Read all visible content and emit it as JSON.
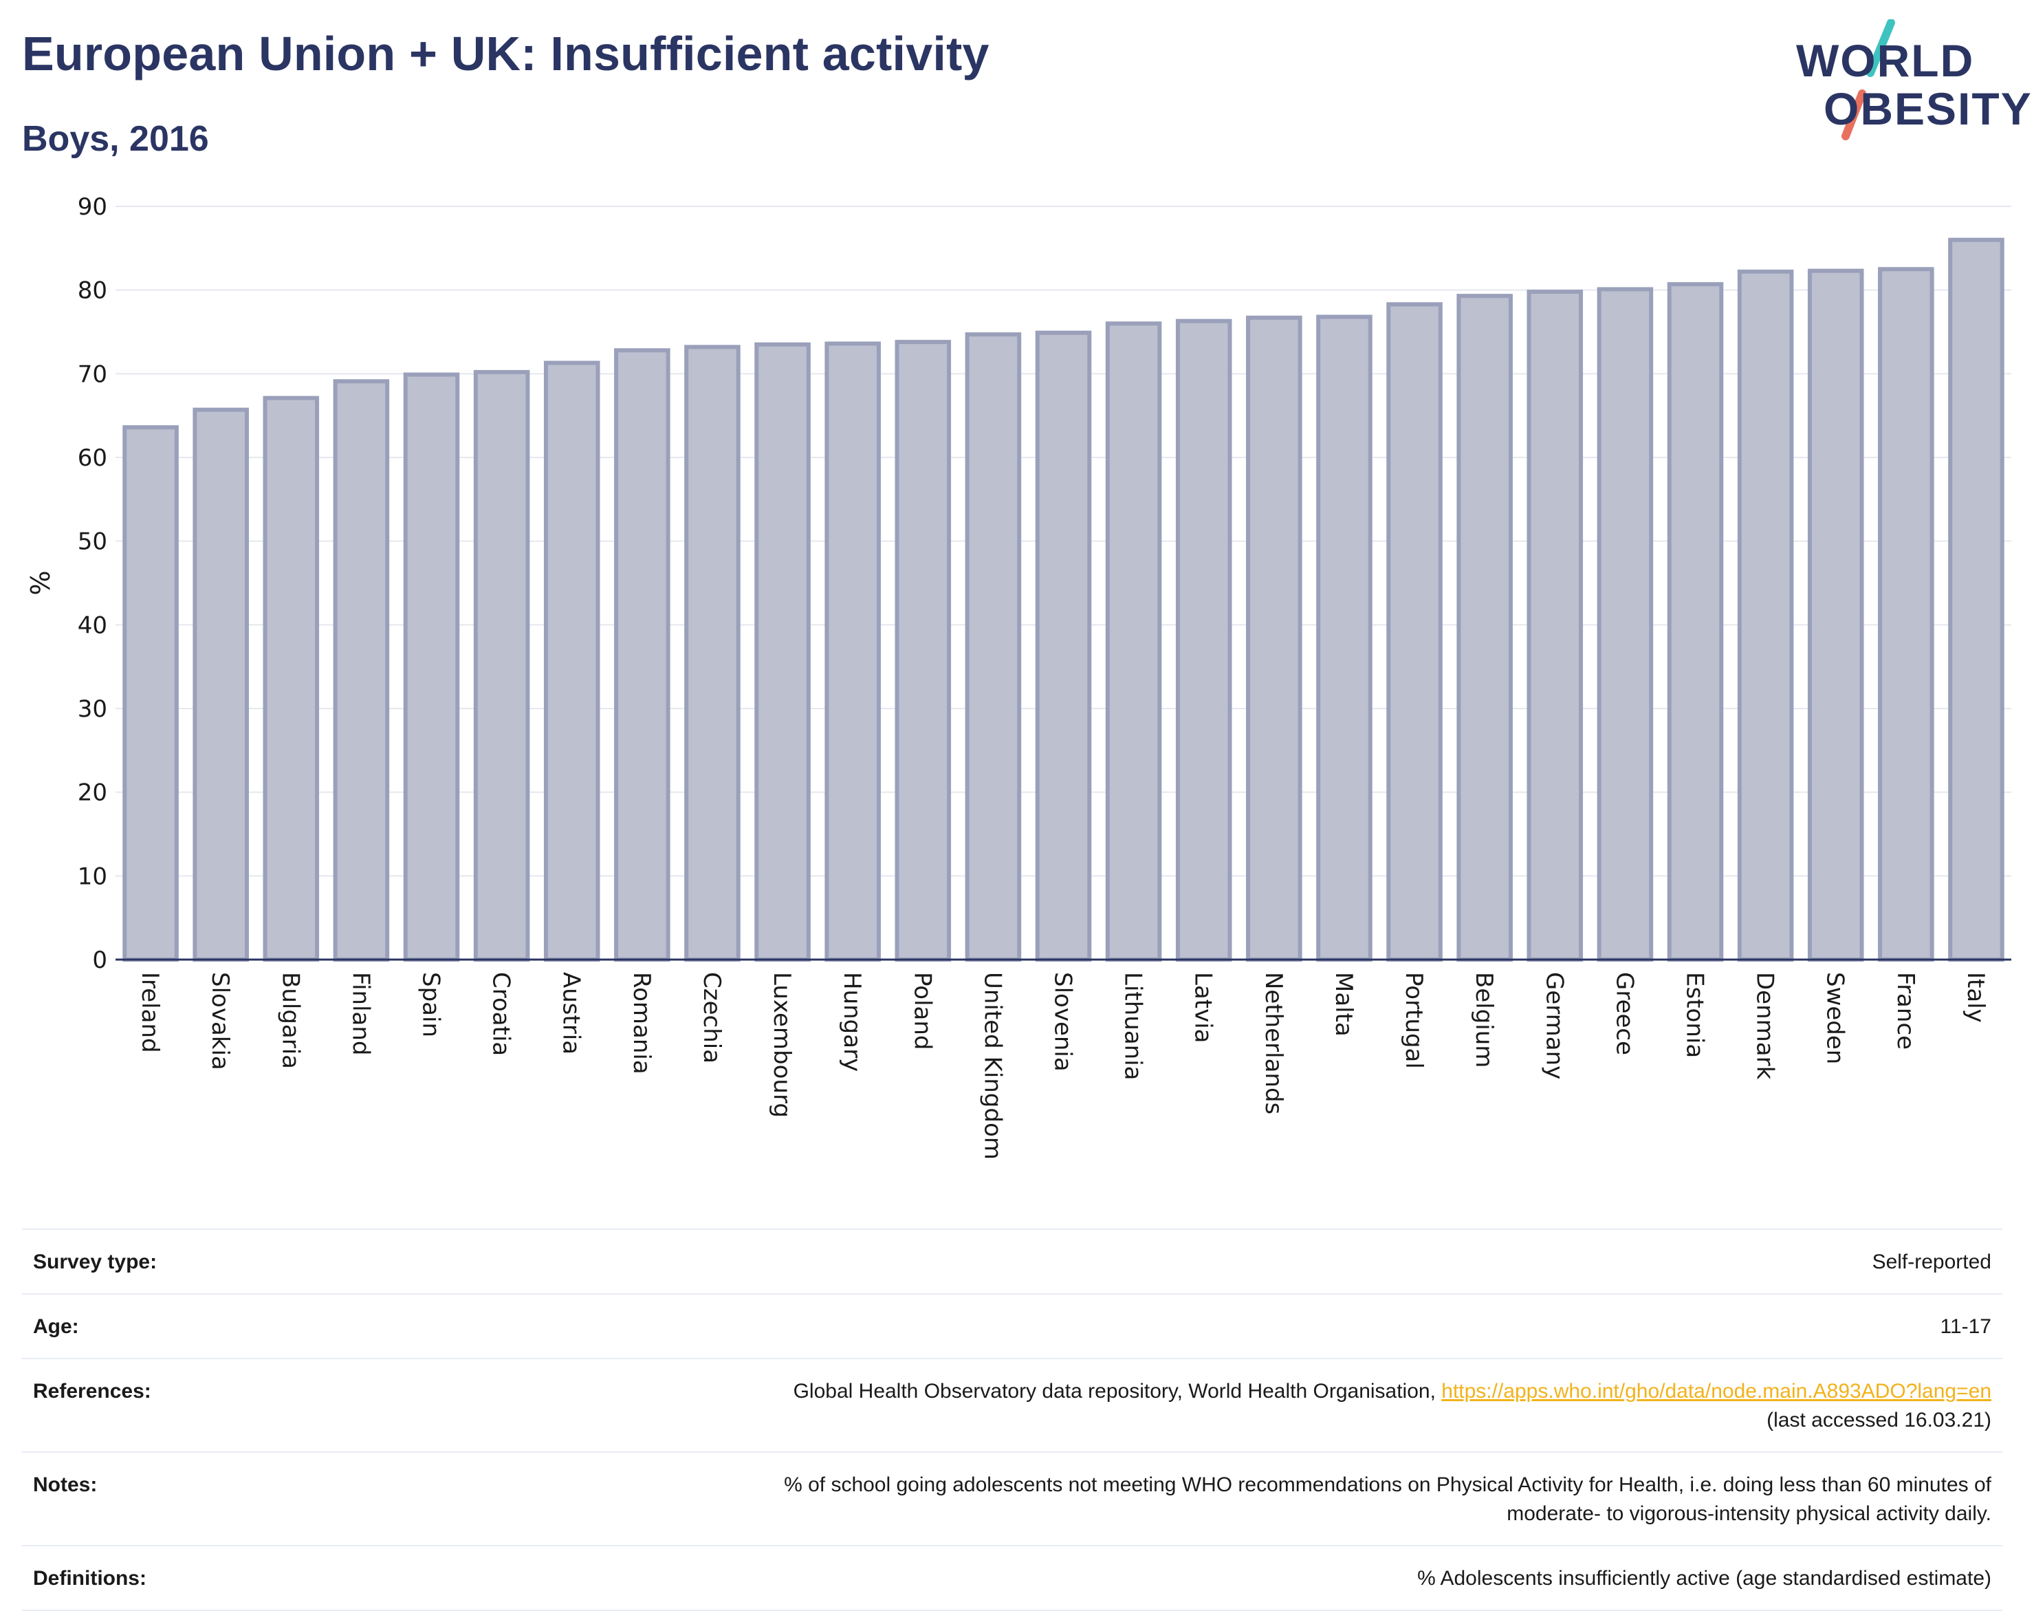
{
  "header": {
    "title": "European Union + UK: Insufficient activity",
    "subtitle": "Boys, 2016"
  },
  "logo": {
    "line1": "WORLD",
    "line2": "OBESITY",
    "text_color": "#2b3563",
    "slash_colors": [
      "#3ec3c1",
      "#e8705f"
    ]
  },
  "chart_data": {
    "type": "bar",
    "ylabel": "%",
    "xlabel": "",
    "ylim": [
      0,
      90
    ],
    "yticks": [
      0,
      10,
      20,
      30,
      40,
      50,
      60,
      70,
      80,
      90
    ],
    "grid": true,
    "bar_color": "#bcc0cf",
    "bar_edge_color": "#9aa0ba",
    "categories": [
      "Ireland",
      "Slovakia",
      "Bulgaria",
      "Finland",
      "Spain",
      "Croatia",
      "Austria",
      "Romania",
      "Czechia",
      "Luxembourg",
      "Hungary",
      "Poland",
      "United Kingdom",
      "Slovenia",
      "Lithuania",
      "Latvia",
      "Netherlands",
      "Malta",
      "Portugal",
      "Belgium",
      "Germany",
      "Greece",
      "Estonia",
      "Denmark",
      "Sweden",
      "France",
      "Italy"
    ],
    "values": [
      63.6,
      65.7,
      67.1,
      69.1,
      69.9,
      70.2,
      71.3,
      72.8,
      73.2,
      73.5,
      73.6,
      73.8,
      74.7,
      74.9,
      76.0,
      76.3,
      76.7,
      76.8,
      78.3,
      79.3,
      79.8,
      80.1,
      80.7,
      82.2,
      82.3,
      82.5,
      86.0
    ]
  },
  "info": {
    "survey_type_label": "Survey type:",
    "survey_type_value": "Self-reported",
    "age_label": "Age:",
    "age_value": "11-17",
    "references_label": "References:",
    "references_text": "Global Health Observatory data repository, World Health Organisation, ",
    "references_link": "https://apps.who.int/gho/data/node.main.A893ADO?lang=en",
    "references_suffix": "(last accessed 16.03.21)",
    "notes_label": "Notes:",
    "notes_value_1": "% of school going adolescents not meeting WHO recommendations on Physical Activity for Health, i.e. doing less than 60 minutes of",
    "notes_value_2": "moderate- to vigorous-intensity physical activity daily.",
    "definitions_label": "Definitions:",
    "definitions_value": "% Adolescents insufficiently active (age standardised estimate)",
    "link_color": "#f2b21b"
  }
}
